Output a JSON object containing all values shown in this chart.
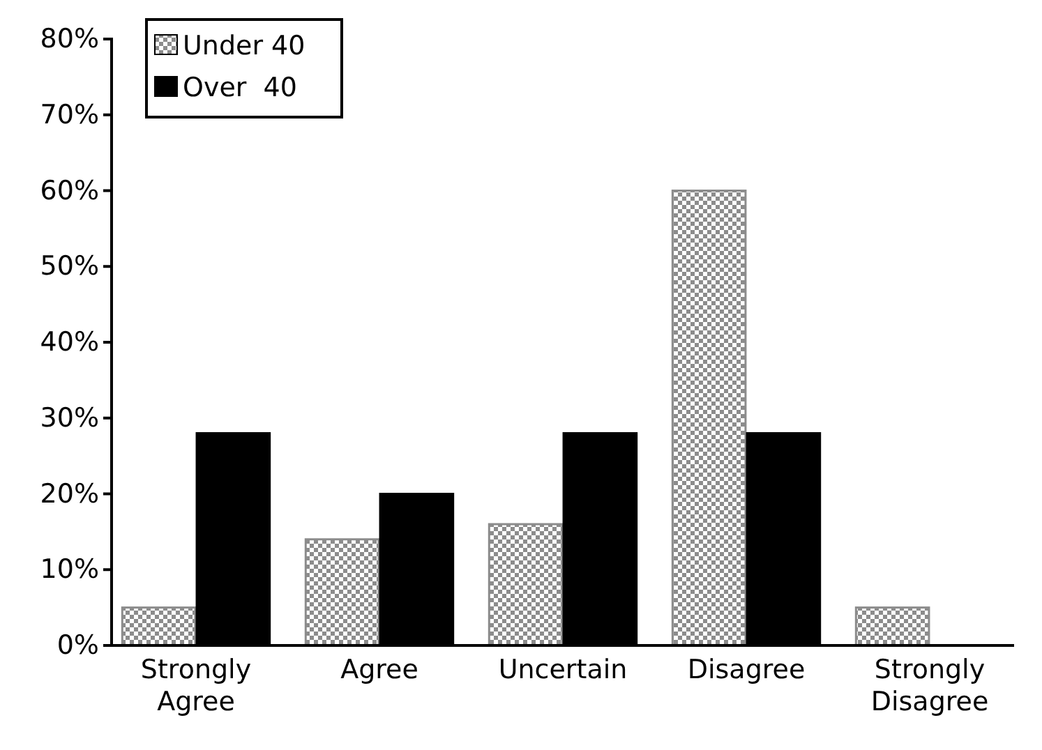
{
  "chart_data": {
    "type": "bar",
    "categories": [
      "Strongly Agree",
      "Agree",
      "Uncertain",
      "Disagree",
      "Strongly Disagree"
    ],
    "series": [
      {
        "name": "Under 40",
        "color": "#8c8c8c",
        "values": [
          5,
          14,
          16,
          60,
          5
        ]
      },
      {
        "name": "Over  40",
        "color": "#000000",
        "values": [
          28,
          20,
          28,
          28,
          0
        ]
      }
    ],
    "ylim": [
      0,
      80
    ],
    "yticks": [
      {
        "value": 0,
        "label": "0%"
      },
      {
        "value": 10,
        "label": "10%"
      },
      {
        "value": 20,
        "label": "20%"
      },
      {
        "value": 30,
        "label": "30%"
      },
      {
        "value": 40,
        "label": "40%"
      },
      {
        "value": 50,
        "label": "50%"
      },
      {
        "value": 60,
        "label": "60%"
      },
      {
        "value": 70,
        "label": "70%"
      },
      {
        "value": 80,
        "label": "80%"
      }
    ],
    "grid": false,
    "legend": "top left"
  }
}
